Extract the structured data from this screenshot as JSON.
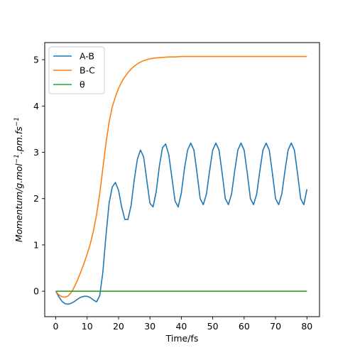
{
  "chart_data": {
    "type": "line",
    "title": "",
    "xlabel": "Time/fs",
    "ylabel_parts": [
      "Momentum/g.mol",
      "−1",
      ".pm.fs",
      "−1"
    ],
    "xlim": [
      -3.5,
      84
    ],
    "ylim": [
      -0.55,
      5.37
    ],
    "xticks": [
      0,
      10,
      20,
      30,
      40,
      50,
      60,
      70,
      80
    ],
    "yticks": [
      0,
      1,
      2,
      3,
      4,
      5
    ],
    "grid": false,
    "legend_position": "upper-left",
    "series": [
      {
        "name": "A-B",
        "color": "#1f77b4",
        "x": [
          0,
          1,
          2,
          3,
          4,
          5,
          6,
          7,
          8,
          9,
          10,
          11,
          12,
          13,
          14,
          15,
          16,
          17,
          18,
          19,
          20,
          21,
          22,
          23,
          24,
          25,
          26,
          27,
          28,
          29,
          30,
          31,
          32,
          33,
          34,
          35,
          36,
          37,
          38,
          39,
          40,
          41,
          42,
          43,
          44,
          45,
          46,
          47,
          48,
          49,
          50,
          51,
          52,
          53,
          54,
          55,
          56,
          57,
          58,
          59,
          60,
          61,
          62,
          63,
          64,
          65,
          66,
          67,
          68,
          69,
          70,
          71,
          72,
          73,
          74,
          75,
          76,
          77,
          78,
          79,
          80
        ],
        "y": [
          0,
          -0.12,
          -0.22,
          -0.27,
          -0.28,
          -0.26,
          -0.22,
          -0.17,
          -0.13,
          -0.11,
          -0.11,
          -0.14,
          -0.19,
          -0.23,
          -0.1,
          0.4,
          1.2,
          1.9,
          2.25,
          2.35,
          2.18,
          1.82,
          1.55,
          1.55,
          1.85,
          2.4,
          2.85,
          3.05,
          2.9,
          2.4,
          1.9,
          1.82,
          2.15,
          2.7,
          3.1,
          3.18,
          2.95,
          2.45,
          1.95,
          1.82,
          2.12,
          2.65,
          3.05,
          3.2,
          3.05,
          2.55,
          2.0,
          1.87,
          2.1,
          2.6,
          3.05,
          3.2,
          3.05,
          2.55,
          2.0,
          1.87,
          2.1,
          2.6,
          3.05,
          3.2,
          3.05,
          2.55,
          2.0,
          1.87,
          2.1,
          2.6,
          3.05,
          3.2,
          3.05,
          2.55,
          2.0,
          1.87,
          2.1,
          2.6,
          3.05,
          3.2,
          3.05,
          2.55,
          2.0,
          1.87,
          2.2
        ]
      },
      {
        "name": "B-C",
        "color": "#ff7f0e",
        "x": [
          0,
          1,
          2,
          3,
          4,
          5,
          6,
          7,
          8,
          9,
          10,
          11,
          12,
          13,
          14,
          15,
          16,
          17,
          18,
          19,
          20,
          21,
          22,
          23,
          24,
          25,
          26,
          27,
          28,
          29,
          30,
          32,
          34,
          36,
          38,
          40,
          45,
          50,
          55,
          60,
          65,
          70,
          75,
          80
        ],
        "y": [
          0,
          -0.08,
          -0.12,
          -0.13,
          -0.1,
          -0.02,
          0.1,
          0.25,
          0.42,
          0.6,
          0.8,
          1.02,
          1.3,
          1.65,
          2.1,
          2.65,
          3.2,
          3.65,
          3.98,
          4.2,
          4.38,
          4.52,
          4.63,
          4.72,
          4.8,
          4.86,
          4.91,
          4.95,
          4.98,
          5.0,
          5.02,
          5.04,
          5.05,
          5.06,
          5.06,
          5.07,
          5.07,
          5.07,
          5.07,
          5.07,
          5.07,
          5.07,
          5.07,
          5.07
        ]
      },
      {
        "name": "θ",
        "color": "#2ca02c",
        "x": [
          0,
          80
        ],
        "y": [
          0,
          0
        ]
      }
    ]
  }
}
